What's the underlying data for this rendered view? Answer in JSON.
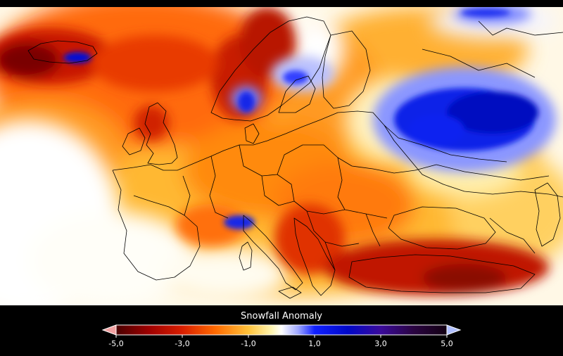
{
  "legend": {
    "title": "Snowfall Anomaly",
    "min": -5.0,
    "max": 5.0,
    "ticks": [
      {
        "value": -5.0,
        "label": "-5,0"
      },
      {
        "value": -3.0,
        "label": "-3,0"
      },
      {
        "value": -1.0,
        "label": "-1,0"
      },
      {
        "value": 1.0,
        "label": "1,0"
      },
      {
        "value": 3.0,
        "label": "3,0"
      },
      {
        "value": 5.0,
        "label": "5,0"
      }
    ],
    "gradient_stops": [
      {
        "value": -5.0,
        "color": "#4a0000"
      },
      {
        "value": -4.0,
        "color": "#9e0000"
      },
      {
        "value": -3.0,
        "color": "#d81e00"
      },
      {
        "value": -2.0,
        "color": "#ff6a00"
      },
      {
        "value": -1.0,
        "color": "#ffc23a"
      },
      {
        "value": -0.3,
        "color": "#fff5b0"
      },
      {
        "value": 0.0,
        "color": "#ffffff"
      },
      {
        "value": 0.5,
        "color": "#9fa8ff"
      },
      {
        "value": 1.0,
        "color": "#1020ff"
      },
      {
        "value": 2.0,
        "color": "#0008c8"
      },
      {
        "value": 3.0,
        "color": "#3a0a9a"
      },
      {
        "value": 4.0,
        "color": "#2a0440"
      },
      {
        "value": 5.0,
        "color": "#120012"
      }
    ],
    "arrow_left_color": "#f0a0a0",
    "arrow_right_color": "#b0c0ff"
  },
  "map": {
    "background_color": "#fff8e6",
    "coastline_color": "#000000"
  }
}
